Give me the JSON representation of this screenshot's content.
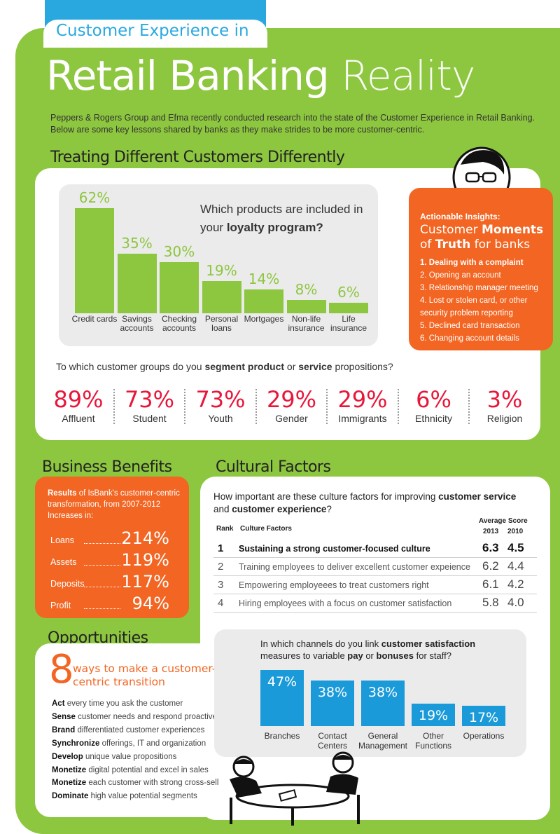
{
  "header": {
    "subtitle_main": "Customer Experience",
    "subtitle_in": "in",
    "title_bold": "Retail Banking",
    "title_light": "Reality",
    "intro": "Peppers & Rogers Group and Efma recently conducted research into the state of the Customer Experience in Retail Banking. Below are some key lessons shared by banks as they make strides to be more customer-centric."
  },
  "sections": {
    "treating": "Treating Different Customers Differently",
    "business": "Business Benefits",
    "cultural": "Cultural Factors",
    "opportunities": "Opportunities"
  },
  "chart_data": [
    {
      "type": "bar",
      "title_pre": "Which products are included in your",
      "title_bold": "loyalty program?",
      "categories": [
        "Credit cards",
        "Savings accounts",
        "Checking accounts",
        "Personal loans",
        "Mortgages",
        "Non-life insurance",
        "Life insurance"
      ],
      "values": [
        62,
        35,
        30,
        19,
        14,
        8,
        6
      ],
      "value_labels": [
        "62%",
        "35%",
        "30%",
        "19%",
        "14%",
        "8%",
        "6%"
      ],
      "ylim": [
        0,
        62
      ]
    },
    {
      "type": "table",
      "question_pre": "To which customer groups do you",
      "question_b1": "segment product",
      "question_mid": "or",
      "question_b2": "service",
      "question_post": "propositions?",
      "categories": [
        "Affluent",
        "Student",
        "Youth",
        "Gender",
        "Immigrants",
        "Ethnicity",
        "Religion"
      ],
      "values": [
        89,
        73,
        73,
        29,
        29,
        6,
        3
      ],
      "value_labels": [
        "89%",
        "73%",
        "73%",
        "29%",
        "29%",
        "6%",
        "3%"
      ]
    },
    {
      "type": "table",
      "question_pre": "How important are these culture factors for improving",
      "question_b1": "customer service",
      "question_mid": "and",
      "question_b2": "customer experience",
      "question_post": "?",
      "col_rank": "Rank",
      "col_factor": "Culture Factors",
      "col_avg": "Average Score",
      "col_y1": "2013",
      "col_y2": "2010",
      "rows": [
        {
          "rank": "1",
          "factor": "Sustaining a strong customer-focused culture",
          "s2013": "6.3",
          "s2010": "4.5"
        },
        {
          "rank": "2",
          "factor": "Training employees to deliver excellent customer expeience",
          "s2013": "6.2",
          "s2010": "4.4"
        },
        {
          "rank": "3",
          "factor": "Empowering employeees to treat customers right",
          "s2013": "6.1",
          "s2010": "4.2"
        },
        {
          "rank": "4",
          "factor": "Hiring employees with a focus on customer satisfaction",
          "s2013": "5.8",
          "s2010": "4.0"
        }
      ]
    },
    {
      "type": "bar",
      "title_pre": "In which channels do you link",
      "title_b1": "customer satisfaction",
      "title_mid": "measures to variable",
      "title_b2": "pay",
      "title_mid2": "or",
      "title_b3": "bonuses",
      "title_post": "for staff?",
      "categories": [
        "Branches",
        "Contact Centers",
        "General Management",
        "Other Functions",
        "Operations"
      ],
      "values": [
        47,
        38,
        38,
        19,
        17
      ],
      "value_labels": [
        "47%",
        "38%",
        "38%",
        "19%",
        "17%"
      ],
      "ylim": [
        0,
        47
      ]
    }
  ],
  "insights": {
    "head": "Actionable Insights:",
    "title_pre": "Customer",
    "title_b1": "Moments",
    "title_mid": "of",
    "title_b2": "Truth",
    "title_post": "for banks",
    "items": [
      "1. Dealing with a complaint",
      "2. Opening an account",
      "3. Relationship manager meeting",
      "4. Lost or stolen card, or other security problem reporting",
      "5. Declined card transaction",
      "6. Changing account details"
    ]
  },
  "results": {
    "head_bold": "Results",
    "head_text": "of IsBank's customer-centric transformation, from 2007-2012",
    "increases": "Increases in:",
    "rows": [
      {
        "label": "Loans",
        "value": "214%"
      },
      {
        "label": "Assets",
        "value": "119%"
      },
      {
        "label": "Deposits",
        "value": "117%"
      },
      {
        "label": "Profit",
        "value": "94%"
      }
    ]
  },
  "opportunities": {
    "number": "8",
    "title": "ways to make a customer-centric transition",
    "items": [
      {
        "verb": "Act",
        "text": "every time you ask the customer"
      },
      {
        "verb": "Sense",
        "text": "customer needs and respond proactively"
      },
      {
        "verb": "Brand",
        "text": "differentiated customer experiences"
      },
      {
        "verb": "Synchronize",
        "text": "offerings, IT and organization"
      },
      {
        "verb": "Develop",
        "text": "unique value propositions"
      },
      {
        "verb": "Monetize",
        "text": "digital potential and excel in sales"
      },
      {
        "verb": "Monetize",
        "text": "each customer with strong cross-sell"
      },
      {
        "verb": "Dominate",
        "text": "high value potential segments"
      }
    ]
  },
  "colors": {
    "green": "#8dc63f",
    "blue": "#29a8df",
    "channel_blue": "#1a9ad9",
    "orange": "#f26522",
    "red": "#e8173a"
  }
}
